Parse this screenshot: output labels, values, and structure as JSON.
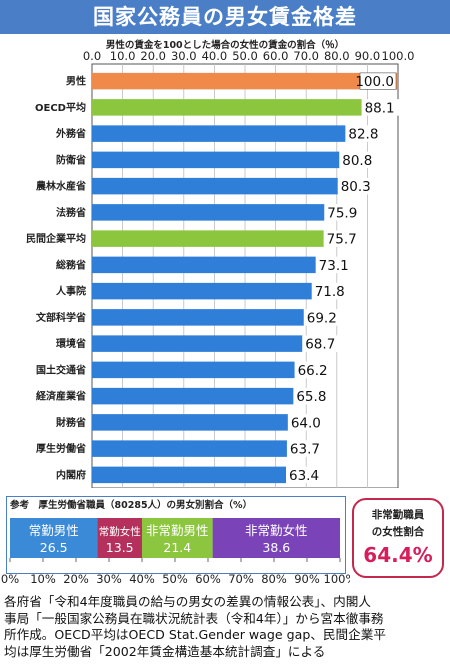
{
  "title": "国家公務員の男女賃金格差",
  "subtitle": "男性の賃金を100とした場合の女性の賃金の割合（％）",
  "chart_data": [
    {
      "type": "bar",
      "orientation": "horizontal",
      "title": "男性の賃金を100とした場合の女性の賃金の割合（％）",
      "xlim": [
        0,
        100
      ],
      "x_ticks": [
        "0.0",
        "10.0",
        "20.0",
        "30.0",
        "40.0",
        "50.0",
        "60.0",
        "70.0",
        "80.0",
        "90.0",
        "100.0"
      ],
      "grid": true,
      "categories": [
        "男性",
        "OECD平均",
        "外務省",
        "防衛省",
        "農林水産省",
        "法務省",
        "民間企業平均",
        "総務省",
        "人事院",
        "文部科学省",
        "環境省",
        "国土交通省",
        "経済産業省",
        "財務省",
        "厚生労働省",
        "内閣府"
      ],
      "values": [
        100.0,
        88.1,
        82.8,
        80.8,
        80.3,
        75.9,
        75.7,
        73.1,
        71.8,
        69.2,
        68.7,
        66.2,
        65.8,
        64.0,
        63.7,
        63.4
      ],
      "value_labels": [
        "100.0",
        "88.1",
        "82.8",
        "80.8",
        "80.3",
        "75.9",
        "75.7",
        "73.1",
        "71.8",
        "69.2",
        "68.7",
        "66.2",
        "65.8",
        "64.0",
        "63.7",
        "63.4"
      ],
      "bar_colors": [
        "#f08a4b",
        "#8cc63f",
        "#2f7fd9",
        "#2f7fd9",
        "#2f7fd9",
        "#2f7fd9",
        "#8cc63f",
        "#2f7fd9",
        "#2f7fd9",
        "#2f7fd9",
        "#2f7fd9",
        "#2f7fd9",
        "#2f7fd9",
        "#2f7fd9",
        "#2f7fd9",
        "#2f7fd9"
      ]
    },
    {
      "type": "bar",
      "stacked": true,
      "orientation": "horizontal",
      "title": "参考　厚生労働省職員（80285人）の男女別割合（%）",
      "xlim": [
        0,
        100
      ],
      "x_ticks": [
        "0%",
        "10%",
        "20%",
        "30%",
        "40%",
        "50%",
        "60%",
        "70%",
        "80%",
        "90%",
        "100%"
      ],
      "series": [
        {
          "name": "常勤男性",
          "values": [
            26.5
          ],
          "label": "26.5",
          "color": "#3a8ad8"
        },
        {
          "name": "常勤女性",
          "values": [
            13.5
          ],
          "label": "13.5",
          "color": "#b5305c"
        },
        {
          "name": "非常勤男性",
          "values": [
            21.4
          ],
          "label": "21.4",
          "color": "#8cc63f"
        },
        {
          "name": "非常勤女性",
          "values": [
            38.6
          ],
          "label": "38.6",
          "color": "#7a44b8"
        }
      ]
    }
  ],
  "reference": {
    "title": "参考　厚生労働省職員（80285人）の男女別割合（%）"
  },
  "callout": {
    "label_line1": "非常勤職員",
    "label_line2": "の女性割合",
    "value": "64.4%"
  },
  "footnote": [
    "各府省「令和4年度職員の給与の男女の差異の情報公表」、内閣人",
    "事局「一般国家公務員在職状況統計表（令和4年）」から宮本徹事務",
    "所作成。OECD平均はOECD Stat.Gender wage gap、民間企業平",
    "均は厚生労働省「2002年賃金構造基本統計調査」による"
  ],
  "colors": {
    "title_bg": "#4a7fc8",
    "accent": "#d61e5a"
  }
}
